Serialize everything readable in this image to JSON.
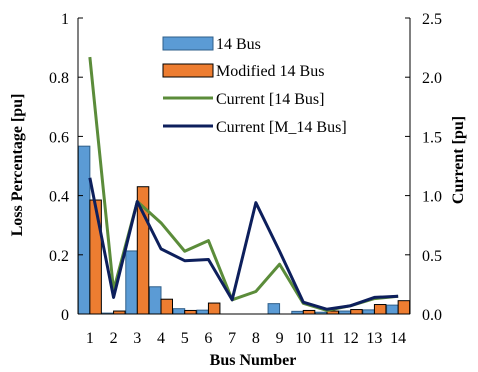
{
  "chart_data": {
    "type": "bar",
    "xlabel": "Bus Number",
    "ylabel": "Loss Percentage [pu]",
    "y2label": "Current [pu]",
    "categories": [
      "1",
      "2",
      "3",
      "4",
      "5",
      "6",
      "7",
      "8",
      "9",
      "10",
      "11",
      "12",
      "13",
      "14"
    ],
    "ylim": [
      0,
      1
    ],
    "yticks": [
      "0",
      "0.2",
      "0.4",
      "0.6",
      "0.8",
      "1"
    ],
    "y2lim": [
      0,
      2.5
    ],
    "y2ticks": [
      "0.0",
      "0.5",
      "1.0",
      "1.5",
      "2.0",
      "2.5"
    ],
    "grid": false,
    "legend_position": "top-right",
    "series": [
      {
        "name": "14 Bus",
        "type": "bar",
        "axis": "left",
        "color": "#5b9bd5",
        "values": [
          0.567,
          0.003,
          0.213,
          0.092,
          0.018,
          0.013,
          0.0,
          0.0,
          0.035,
          0.009,
          0.006,
          0.01,
          0.014,
          0.03
        ]
      },
      {
        "name": "Modified 14 Bus",
        "type": "bar",
        "axis": "left",
        "color": "#ed7d31",
        "values": [
          0.385,
          0.01,
          0.43,
          0.05,
          0.012,
          0.037,
          0.0,
          0.0,
          0.0,
          0.012,
          0.01,
          0.015,
          0.032,
          0.045
        ]
      },
      {
        "name": "Current [14 Bus]",
        "type": "line",
        "axis": "right",
        "color": "#5b8c3a",
        "values": [
          2.17,
          0.2,
          0.95,
          0.77,
          0.53,
          0.62,
          0.12,
          0.19,
          0.42,
          0.09,
          0.03,
          0.07,
          0.13,
          0.15
        ]
      },
      {
        "name": "Current [M_14 Bus]",
        "type": "line",
        "axis": "right",
        "color": "#0d1f5c",
        "values": [
          1.15,
          0.14,
          0.95,
          0.55,
          0.45,
          0.46,
          0.12,
          0.94,
          0.53,
          0.1,
          0.04,
          0.07,
          0.14,
          0.15
        ]
      }
    ]
  }
}
